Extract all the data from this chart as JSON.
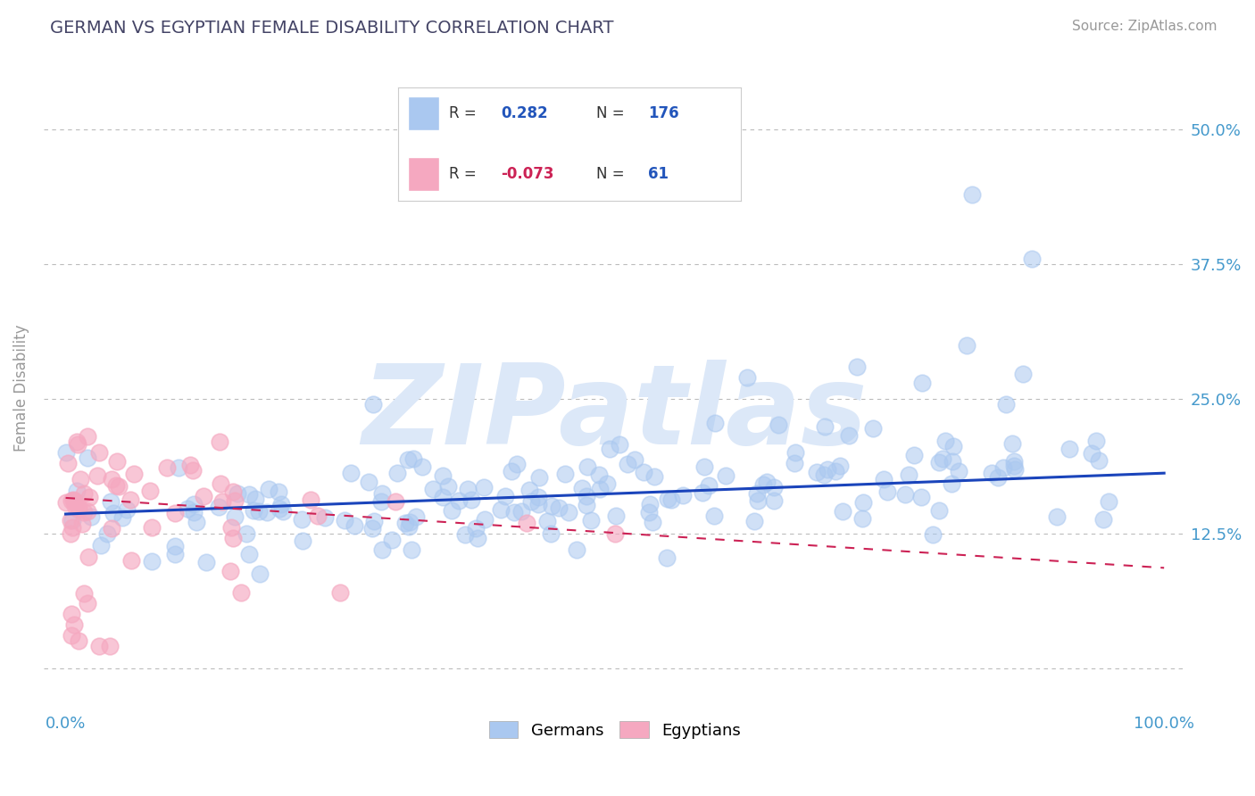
{
  "title": "GERMAN VS EGYPTIAN FEMALE DISABILITY CORRELATION CHART",
  "source": "Source: ZipAtlas.com",
  "ylabel": "Female Disability",
  "xlim": [
    -0.02,
    1.02
  ],
  "ylim": [
    -0.04,
    0.56
  ],
  "yticks": [
    0.0,
    0.125,
    0.25,
    0.375,
    0.5
  ],
  "ytick_labels": [
    "",
    "12.5%",
    "25.0%",
    "37.5%",
    "50.0%"
  ],
  "xticks": [
    0.0,
    1.0
  ],
  "xtick_labels": [
    "0.0%",
    "100.0%"
  ],
  "german_R": 0.282,
  "german_N": 176,
  "egyptian_R": -0.073,
  "egyptian_N": 61,
  "german_color": "#aac8f0",
  "egyptian_color": "#f5a8c0",
  "german_line_color": "#1a44bb",
  "egyptian_line_color": "#cc2255",
  "background_color": "#ffffff",
  "grid_color": "#bbbbbb",
  "title_color": "#444466",
  "source_color": "#999999",
  "watermark_text": "ZIPatlas",
  "watermark_color": "#dce8f8",
  "axis_label_color": "#999999",
  "tick_label_color": "#4499cc",
  "legend_text_color": "#333333",
  "r_value_color": "#2255bb",
  "n_value_color": "#2255bb",
  "r_neg_color": "#cc2255"
}
